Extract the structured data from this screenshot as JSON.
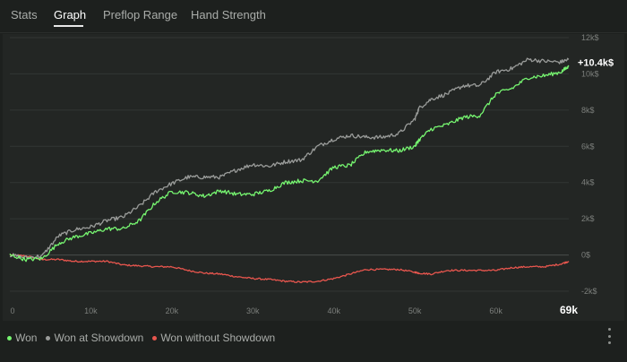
{
  "tabs": [
    {
      "label": "Stats"
    },
    {
      "label": "Graph",
      "active": true
    },
    {
      "label": "Preflop Range"
    },
    {
      "label": "Hand Strength"
    }
  ],
  "colors": {
    "won": "#76f570",
    "showdown": "#9a9c9a",
    "nonshowdown": "#e8564e",
    "grid": "#333734",
    "zero_line": "#4a4e4b",
    "axis_text": "#7c7f7c"
  },
  "chart_data": {
    "type": "line",
    "x_unit": "hands",
    "xlim": [
      0,
      69000
    ],
    "ylim": [
      -2000,
      12000
    ],
    "x_ticks": [
      0,
      10000,
      20000,
      30000,
      40000,
      50000,
      60000
    ],
    "x_tick_labels": [
      "0",
      "10k",
      "20k",
      "30k",
      "40k",
      "50k",
      "60k"
    ],
    "x_end_label": "69k",
    "y_ticks": [
      12000,
      10000,
      8000,
      6000,
      4000,
      2000,
      0,
      -2000
    ],
    "y_tick_labels": [
      "12k$",
      "10k$",
      "8k$",
      "6k$",
      "4k$",
      "2k$",
      "0$",
      "-2k$"
    ],
    "end_value_label": "+10.4k$",
    "x": [
      0,
      2000,
      4000,
      6000,
      8000,
      10000,
      12000,
      14000,
      16000,
      18000,
      20000,
      22000,
      24000,
      26000,
      28000,
      30000,
      32000,
      34000,
      36000,
      38000,
      40000,
      42000,
      44000,
      46000,
      48000,
      50000,
      50500,
      52000,
      54000,
      56000,
      58000,
      60000,
      62000,
      64000,
      66000,
      68000,
      69000
    ],
    "series": [
      {
        "name": "Won",
        "color_key": "won",
        "values": [
          0,
          -250,
          -200,
          650,
          1000,
          1200,
          1450,
          1450,
          1900,
          2900,
          3500,
          3450,
          3250,
          3550,
          3350,
          3350,
          3550,
          4000,
          4100,
          4100,
          4850,
          4950,
          5700,
          5800,
          5750,
          6000,
          6350,
          6950,
          7200,
          7600,
          7700,
          8900,
          9200,
          9800,
          9900,
          10100,
          10400
        ]
      },
      {
        "name": "Won at Showdown",
        "color_key": "showdown",
        "values": [
          0,
          -150,
          -50,
          1050,
          1400,
          1550,
          1900,
          2100,
          2700,
          3500,
          3950,
          4300,
          4300,
          4300,
          4700,
          5000,
          4900,
          5150,
          5250,
          6000,
          6400,
          6600,
          6500,
          6500,
          6700,
          7500,
          8100,
          8600,
          8900,
          9350,
          9350,
          10100,
          10300,
          10800,
          10700,
          10650,
          10800
        ]
      },
      {
        "name": "Won without Showdown",
        "color_key": "nonshowdown",
        "values": [
          0,
          -50,
          -250,
          -250,
          -350,
          -350,
          -350,
          -550,
          -600,
          -650,
          -650,
          -850,
          -1000,
          -1050,
          -1200,
          -1300,
          -1350,
          -1450,
          -1500,
          -1450,
          -1300,
          -1050,
          -800,
          -800,
          -800,
          -950,
          -1000,
          -1050,
          -850,
          -850,
          -850,
          -850,
          -700,
          -650,
          -650,
          -500,
          -350
        ]
      }
    ]
  }
}
